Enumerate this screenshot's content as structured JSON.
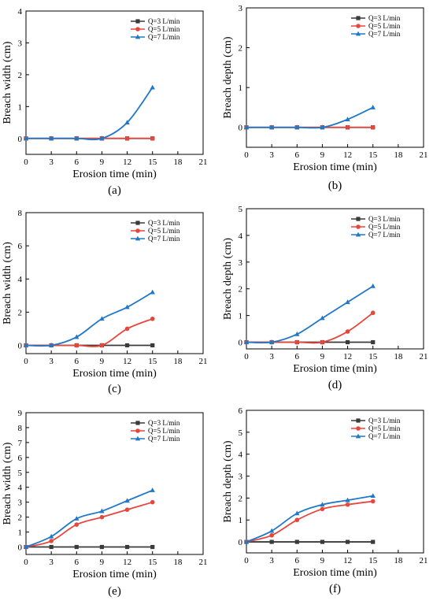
{
  "series_names": [
    "Q=3 L/min",
    "Q=5 L/min",
    "Q=7 L/min"
  ],
  "colors": {
    "s1": "#3a3a3a",
    "s2": "#e8453c",
    "s3": "#1f78c8"
  },
  "chart_data": [
    {
      "type": "line",
      "caption": "(a)",
      "xlabel": "Erosion time (min)",
      "ylabel": "Breach width (cm)",
      "xlim": [
        0,
        21
      ],
      "ylim": [
        -0.5,
        4
      ],
      "xticks": [
        0,
        3,
        6,
        9,
        12,
        15,
        18,
        21
      ],
      "yticks": [
        0,
        1,
        2,
        3,
        4
      ],
      "legend": "top-right",
      "grid": false,
      "x": [
        0,
        3,
        6,
        9,
        12,
        15
      ],
      "series": [
        {
          "name": "Q=3 L/min",
          "marker": "square",
          "values": [
            0,
            0,
            0,
            0,
            0,
            0
          ]
        },
        {
          "name": "Q=5 L/min",
          "marker": "circle",
          "values": [
            0,
            0,
            0,
            0,
            0,
            0
          ]
        },
        {
          "name": "Q=7 L/min",
          "marker": "triangle",
          "values": [
            0,
            0,
            0,
            0,
            0.5,
            1.6
          ]
        }
      ]
    },
    {
      "type": "line",
      "caption": "(b)",
      "xlabel": "Erosion time (min)",
      "ylabel": "Breach depth (cm)",
      "xlim": [
        0,
        21
      ],
      "ylim": [
        -0.5,
        3
      ],
      "xticks": [
        0,
        3,
        6,
        9,
        12,
        15,
        18,
        21
      ],
      "yticks": [
        0,
        1,
        2,
        3
      ],
      "legend": "top-right",
      "grid": false,
      "x": [
        0,
        3,
        6,
        9,
        12,
        15
      ],
      "series": [
        {
          "name": "Q=3 L/min",
          "marker": "square",
          "values": [
            0,
            0,
            0,
            0,
            0,
            0
          ]
        },
        {
          "name": "Q=5 L/min",
          "marker": "circle",
          "values": [
            0,
            0,
            0,
            0,
            0,
            0
          ]
        },
        {
          "name": "Q=7 L/min",
          "marker": "triangle",
          "values": [
            0,
            0,
            0,
            0,
            0.2,
            0.5
          ]
        }
      ]
    },
    {
      "type": "line",
      "caption": "(c)",
      "xlabel": "Erosion time (min)",
      "ylabel": "Breach width (cm)",
      "xlim": [
        0,
        21
      ],
      "ylim": [
        -0.5,
        8
      ],
      "xticks": [
        0,
        3,
        6,
        9,
        12,
        15,
        18,
        21
      ],
      "yticks": [
        0,
        2,
        4,
        6,
        8
      ],
      "legend": "top-right",
      "grid": false,
      "x": [
        0,
        3,
        6,
        9,
        12,
        15
      ],
      "series": [
        {
          "name": "Q=3 L/min",
          "marker": "square",
          "values": [
            0,
            0,
            0,
            0,
            0,
            0
          ]
        },
        {
          "name": "Q=5 L/min",
          "marker": "circle",
          "values": [
            0,
            0,
            0,
            0,
            1.0,
            1.6
          ]
        },
        {
          "name": "Q=7 L/min",
          "marker": "triangle",
          "values": [
            0,
            0,
            0.5,
            1.6,
            2.3,
            3.2
          ]
        }
      ]
    },
    {
      "type": "line",
      "caption": "(d)",
      "xlabel": "Erosion time (min)",
      "ylabel": "Breach depth (cm)",
      "xlim": [
        0,
        21
      ],
      "ylim": [
        -0.25,
        5
      ],
      "xticks": [
        0,
        3,
        6,
        9,
        12,
        15,
        18,
        21
      ],
      "yticks": [
        0,
        1,
        2,
        3,
        4,
        5
      ],
      "legend": "top-right",
      "grid": false,
      "x": [
        0,
        3,
        6,
        9,
        12,
        15
      ],
      "series": [
        {
          "name": "Q=3 L/min",
          "marker": "square",
          "values": [
            0,
            0,
            0,
            0,
            0,
            0
          ]
        },
        {
          "name": "Q=5 L/min",
          "marker": "circle",
          "values": [
            0,
            0,
            0,
            0,
            0.4,
            1.1
          ]
        },
        {
          "name": "Q=7 L/min",
          "marker": "triangle",
          "values": [
            0,
            0,
            0.3,
            0.9,
            1.5,
            2.1
          ]
        }
      ]
    },
    {
      "type": "line",
      "caption": "(e)",
      "xlabel": "Erosion time (min)",
      "ylabel": "Breach width (cm)",
      "xlim": [
        0,
        21
      ],
      "ylim": [
        -0.5,
        9
      ],
      "xticks": [
        0,
        3,
        6,
        9,
        12,
        15,
        18,
        21
      ],
      "yticks": [
        0,
        1,
        2,
        3,
        4,
        5,
        6,
        7,
        8,
        9
      ],
      "legend": "top-right",
      "grid": false,
      "x": [
        0,
        3,
        6,
        9,
        12,
        15
      ],
      "series": [
        {
          "name": "Q=3 L/min",
          "marker": "square",
          "values": [
            0,
            0,
            0,
            0,
            0,
            0
          ]
        },
        {
          "name": "Q=5 L/min",
          "marker": "circle",
          "values": [
            0,
            0.4,
            1.5,
            2.0,
            2.5,
            3.0
          ]
        },
        {
          "name": "Q=7 L/min",
          "marker": "triangle",
          "values": [
            0,
            0.7,
            1.9,
            2.4,
            3.1,
            3.8
          ]
        }
      ]
    },
    {
      "type": "line",
      "caption": "(f)",
      "xlabel": "Erosion time (min)",
      "ylabel": "Breach depth (cm)",
      "xlim": [
        0,
        21
      ],
      "ylim": [
        -0.5,
        6
      ],
      "xticks": [
        0,
        3,
        6,
        9,
        12,
        15,
        18,
        21
      ],
      "yticks": [
        0,
        1,
        2,
        3,
        4,
        5,
        6
      ],
      "legend": "top-right",
      "grid": false,
      "x": [
        0,
        3,
        6,
        9,
        12,
        15
      ],
      "series": [
        {
          "name": "Q=3 L/min",
          "marker": "square",
          "values": [
            0,
            0,
            0,
            0,
            0,
            0
          ]
        },
        {
          "name": "Q=5 L/min",
          "marker": "circle",
          "values": [
            0,
            0.3,
            1.0,
            1.5,
            1.7,
            1.85
          ]
        },
        {
          "name": "Q=7 L/min",
          "marker": "triangle",
          "values": [
            0,
            0.5,
            1.3,
            1.7,
            1.9,
            2.1
          ]
        }
      ]
    }
  ]
}
